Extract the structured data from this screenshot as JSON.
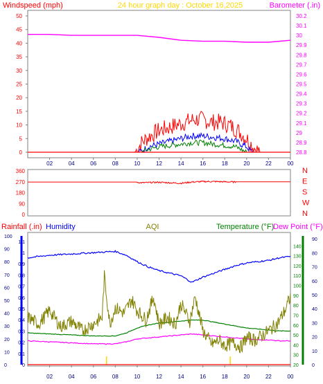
{
  "header": {
    "left_title": "Windspeed (mph)",
    "center_title": "24 hour graph day : October 16,2025",
    "right_title": "Barometer (.in)"
  },
  "colors": {
    "background": "#ffffff",
    "frame": "#808080",
    "windspeed": "#ff0000",
    "wind_avg": "#0000ff",
    "wind_low": "#008000",
    "barometer": "#ff00ff",
    "direction": "#ff0000",
    "rainfall": "#ff0000",
    "humidity": "#0000ff",
    "aqi": "#808000",
    "temperature": "#008000",
    "dewpoint": "#ff00ff",
    "rain_marker": "#ffd700"
  },
  "chart_data": [
    {
      "id": "wind_barometer",
      "type": "line",
      "title": "24 hour graph day : October 16,2025",
      "ylabel": "Windspeed (mph)",
      "y2label": "Barometer (.in)",
      "ylim": [
        0,
        50
      ],
      "y2lim": [
        28.8,
        30.2
      ],
      "y_ticks": [
        0,
        5,
        10,
        15,
        20,
        25,
        30,
        35,
        40,
        45,
        50
      ],
      "y2_ticks": [
        "28.8",
        "28.9",
        "29",
        "29.1",
        "29.2",
        "29.3",
        "29.4",
        "29.5",
        "29.6",
        "29.7",
        "29.8",
        "29.9",
        "30",
        "30.1",
        "30.2"
      ],
      "x_ticks": [
        "02",
        "04",
        "06",
        "08",
        "10",
        "12",
        "14",
        "16",
        "18",
        "20",
        "22",
        "00"
      ],
      "series": [
        {
          "key": "gust",
          "x": [
            0,
            9.8,
            10.5,
            11.2,
            12,
            12.8,
            13.6,
            14.4,
            15.2,
            16,
            16.8,
            17.6,
            18.4,
            19.2,
            20,
            20.6,
            21.2,
            24
          ],
          "values": [
            0,
            0,
            4,
            6,
            8,
            9,
            10,
            11,
            12,
            12,
            11,
            11,
            10,
            8,
            5,
            2,
            0,
            0
          ]
        },
        {
          "key": "avg",
          "x": [
            0,
            10.2,
            11,
            12,
            13,
            14,
            15,
            16,
            17,
            18,
            19,
            20,
            20.5,
            24
          ],
          "values": [
            0,
            0,
            2,
            3,
            4,
            5,
            6,
            6,
            5.5,
            5,
            4,
            2,
            0,
            0
          ]
        },
        {
          "key": "low",
          "x": [
            0,
            10.4,
            11,
            12,
            13,
            14,
            15,
            16,
            17,
            18,
            19,
            20,
            24
          ],
          "values": [
            0,
            0,
            1,
            2,
            2.5,
            3,
            3.5,
            3.5,
            3,
            2.5,
            2,
            0,
            0
          ]
        },
        {
          "key": "barometer",
          "x": [
            0,
            2,
            4,
            6,
            8,
            10,
            12,
            14,
            16,
            18,
            20,
            22,
            24
          ],
          "values": [
            30.01,
            30.01,
            30.0,
            30.0,
            30.0,
            30.0,
            29.98,
            29.95,
            29.94,
            29.94,
            29.93,
            29.93,
            29.95
          ]
        }
      ]
    },
    {
      "id": "wind_direction",
      "type": "line",
      "y_ticks": [
        0,
        90,
        180,
        270,
        360
      ],
      "ylim": [
        0,
        360
      ],
      "y_direction_labels": [
        "N",
        "W",
        "S",
        "E",
        "N"
      ],
      "x": [
        0,
        2,
        4,
        6,
        8,
        9.9,
        10.3,
        12,
        13,
        14,
        15,
        16,
        17,
        18,
        19,
        20,
        22,
        24
      ],
      "values": [
        268,
        268,
        268,
        268,
        268,
        268,
        262,
        266,
        262,
        258,
        268,
        272,
        272,
        270,
        268,
        268,
        270,
        270
      ]
    },
    {
      "id": "rain_humidity_aqi_temp",
      "type": "line",
      "top_labels": {
        "rainfall": "Rainfall (.in)",
        "humidity": "Humidity",
        "aqi": "AQI",
        "temperature": "Temperature (°F)",
        "dewpoint": "Dew Point (°F)"
      },
      "humidity_ticks": [
        0,
        10,
        20,
        30,
        40,
        50,
        60,
        70,
        80,
        90,
        100
      ],
      "rain_ticks": [
        "0",
        "0.1",
        "0.2",
        "0.3",
        "0.4",
        "0.5",
        "0.6",
        "0.7",
        "0.8",
        "0.9",
        "1",
        "1.1"
      ],
      "temp_ticks": [
        20,
        30,
        40,
        50,
        60,
        70,
        80,
        90,
        100,
        110,
        120,
        130,
        140
      ],
      "aqi_ticks": [
        0,
        10,
        20,
        30,
        40,
        50,
        60,
        70,
        80,
        90
      ],
      "x_ticks": [
        "02",
        "04",
        "06",
        "08",
        "10",
        "12",
        "14",
        "16",
        "18",
        "20",
        "22",
        "00"
      ],
      "humidity": {
        "x": [
          0,
          2,
          4,
          6,
          8,
          9,
          10,
          11,
          12,
          13,
          14,
          15,
          16,
          17,
          18,
          19,
          20,
          21,
          22,
          23,
          24
        ],
        "values": [
          83,
          85,
          86,
          87,
          88,
          85,
          80,
          76,
          73,
          71,
          69,
          64,
          68,
          71,
          74,
          77,
          79,
          80,
          81,
          83,
          84
        ]
      },
      "temperature_F": {
        "x": [
          0,
          2,
          4,
          6,
          8,
          9,
          10,
          11,
          12,
          13,
          14,
          15,
          16,
          17,
          18,
          19,
          20,
          21,
          22,
          23,
          24
        ],
        "values": [
          52,
          51,
          50,
          49,
          49,
          52,
          57,
          60,
          62,
          63,
          64,
          65,
          65,
          63,
          61,
          59,
          57,
          56,
          55,
          54,
          54
        ]
      },
      "dewpoint_F": {
        "x": [
          0,
          2,
          4,
          6,
          8,
          9,
          10,
          11,
          12,
          13,
          14,
          15,
          16,
          17,
          18,
          19,
          20,
          21,
          22,
          23,
          24
        ],
        "values": [
          44,
          43,
          42,
          41,
          41,
          43,
          46,
          47,
          48,
          49,
          50,
          51,
          50,
          49,
          48,
          47,
          46,
          45,
          45,
          44,
          44
        ]
      },
      "aqi": {
        "x": [
          0,
          1,
          2,
          3,
          4,
          5,
          6,
          6.8,
          7,
          7.5,
          8,
          8.8,
          9.5,
          10,
          10.8,
          11.5,
          12,
          12.8,
          13.5,
          14,
          14.8,
          15.3,
          16,
          16.8,
          17.5,
          18,
          18.8,
          19.5,
          20,
          20.8,
          21.5,
          22,
          22.8,
          23.5,
          24
        ],
        "values": [
          35,
          30,
          40,
          28,
          32,
          25,
          30,
          35,
          65,
          30,
          42,
          38,
          48,
          40,
          33,
          50,
          30,
          35,
          30,
          45,
          32,
          50,
          25,
          15,
          18,
          14,
          16,
          13,
          20,
          18,
          22,
          25,
          30,
          40,
          50
        ]
      },
      "rain_events_x": [
        7.2,
        18.5
      ]
    }
  ]
}
